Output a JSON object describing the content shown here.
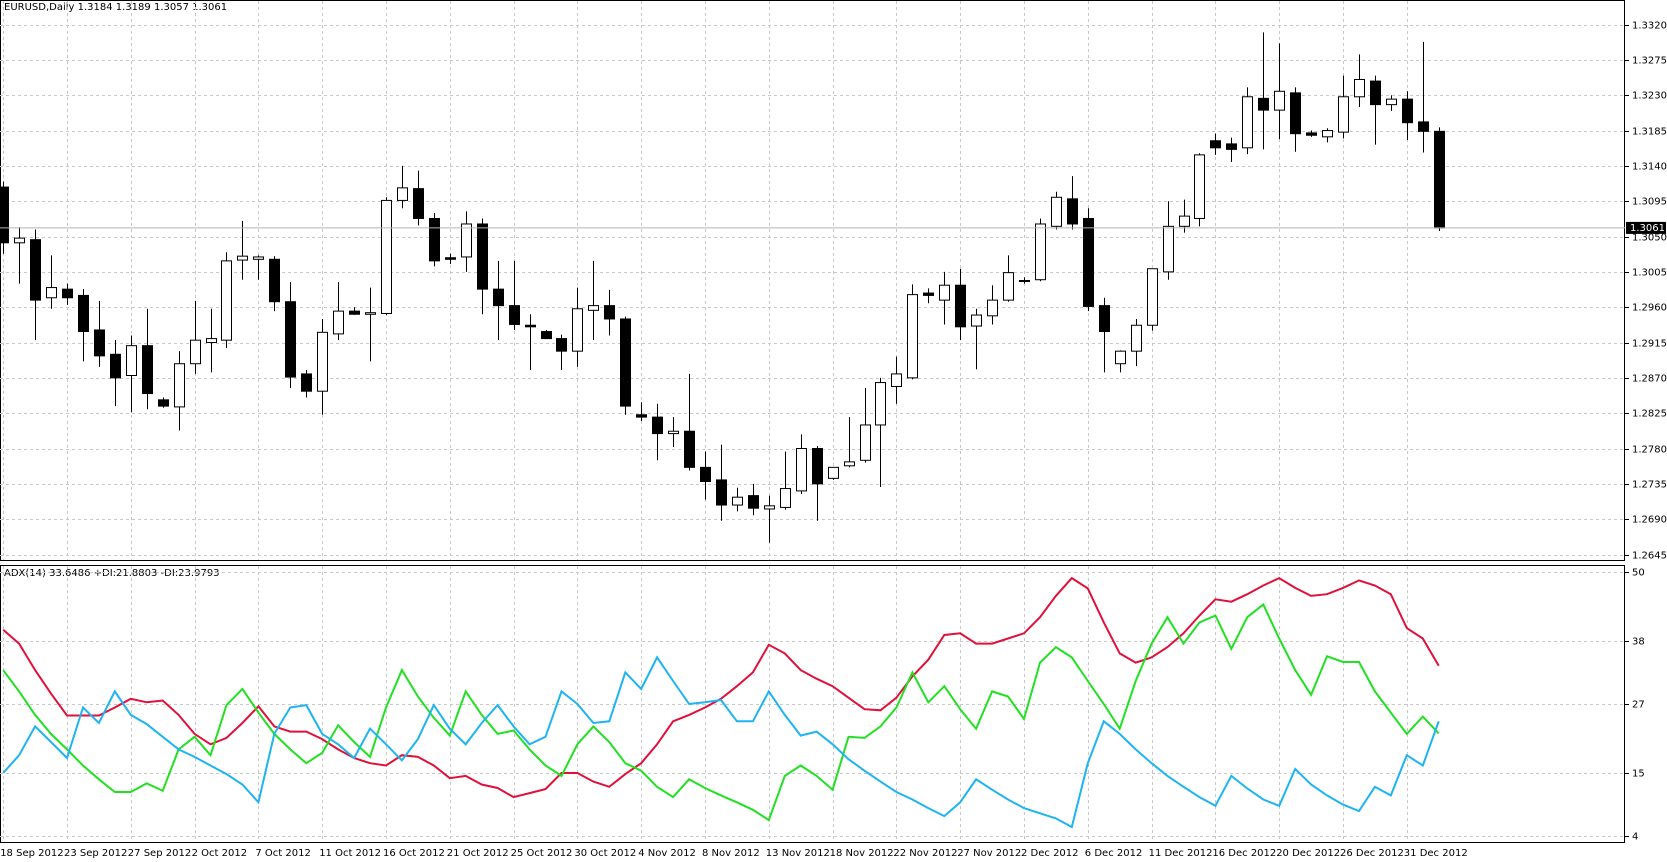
{
  "chart_data": [
    {
      "type": "candlestick",
      "title": "EURUSD,Daily  1.3184 1.3189 1.3057 1.3061",
      "categories": [
        "18 Sep 2012",
        null,
        null,
        null,
        "23 Sep 2012",
        null,
        null,
        null,
        "27 Sep 2012",
        null,
        null,
        null,
        "2 Oct 2012",
        null,
        null,
        null,
        "7 Oct 2012",
        null,
        null,
        null,
        "11 Oct 2012",
        null,
        null,
        null,
        "16 Oct 2012",
        null,
        null,
        null,
        "21 Oct 2012",
        null,
        null,
        null,
        "25 Oct 2012",
        null,
        null,
        null,
        "30 Oct 2012",
        null,
        null,
        null,
        "4 Nov 2012",
        null,
        null,
        null,
        "8 Nov 2012",
        null,
        null,
        null,
        "13 Nov 2012",
        null,
        null,
        null,
        "18 Nov 2012",
        null,
        null,
        null,
        "22 Nov 2012",
        null,
        null,
        null,
        "27 Nov 2012",
        null,
        null,
        null,
        "2 Dec 2012",
        null,
        null,
        null,
        "6 Dec 2012",
        null,
        null,
        null,
        "11 Dec 2012",
        null,
        null,
        null,
        "16 Dec 2012",
        null,
        null,
        null,
        "20 Dec 2012",
        null,
        null,
        null,
        "26 Dec 2012",
        null,
        null,
        null,
        "31 Dec 2012",
        null,
        null
      ],
      "open": [
        1.3113,
        1.3042,
        1.3046,
        1.2972,
        1.2983,
        1.2975,
        1.2931,
        1.29,
        1.2873,
        1.2911,
        1.2842,
        1.2833,
        1.2888,
        1.2915,
        1.2918,
        1.302,
        1.3021,
        1.3021,
        1.2967,
        1.2875,
        1.2853,
        1.2926,
        1.2955,
        1.2951,
        1.2952,
        1.3096,
        1.3111,
        1.3073,
        1.3023,
        1.3024,
        1.3066,
        1.2983,
        1.2962,
        1.2937,
        1.2929,
        1.292,
        1.2904,
        1.2956,
        1.2962,
        1.2945,
        1.2823,
        1.282,
        1.2799,
        1.2802,
        1.2756,
        1.274,
        1.2708,
        1.272,
        1.2703,
        1.2705,
        1.2726,
        1.278,
        1.2742,
        1.2758,
        1.2765,
        1.281,
        1.2859,
        1.287,
        1.2978,
        1.2969,
        1.2988,
        1.2936,
        1.2949,
        1.2969,
        1.2993,
        1.2995,
        1.3063,
        1.3098,
        1.3073,
        1.2962,
        1.2888,
        1.2904,
        1.2937,
        1.3005,
        1.3063,
        1.3073,
        1.3172,
        1.3168,
        1.3163,
        1.3226,
        1.3211,
        1.3233,
        1.3182,
        1.3177,
        1.3183,
        1.3228,
        1.3248,
        1.3218,
        1.3225,
        1.3196,
        1.3184
      ],
      "high": [
        1.312,
        1.3062,
        1.3059,
        1.3026,
        1.299,
        1.2983,
        1.2968,
        1.2918,
        1.2924,
        1.2958,
        1.2845,
        1.2904,
        1.2968,
        1.2958,
        1.303,
        1.307,
        1.3026,
        1.3025,
        1.2992,
        1.288,
        1.2945,
        1.2992,
        1.296,
        1.2985,
        1.31,
        1.314,
        1.3134,
        1.308,
        1.3028,
        1.3082,
        1.3073,
        1.3019,
        1.3019,
        1.2951,
        1.2931,
        1.2925,
        1.2985,
        1.3019,
        1.2982,
        1.2948,
        1.2839,
        1.2837,
        1.282,
        1.2875,
        1.2776,
        1.2785,
        1.273,
        1.2735,
        1.272,
        1.2776,
        1.2798,
        1.2783,
        1.2756,
        1.282,
        1.2857,
        1.287,
        1.2897,
        1.2989,
        1.2984,
        1.3005,
        1.3009,
        1.2958,
        1.2988,
        1.3026,
        1.2998,
        1.3073,
        1.3107,
        1.3127,
        1.3086,
        1.2972,
        1.2905,
        1.2945,
        1.3009,
        1.3095,
        1.3097,
        1.3156,
        1.3181,
        1.3176,
        1.324,
        1.331,
        1.3296,
        1.324,
        1.3185,
        1.3188,
        1.3255,
        1.3282,
        1.3255,
        1.323,
        1.3235,
        1.3298,
        1.3189
      ],
      "low": [
        1.3028,
        1.299,
        1.2918,
        1.2958,
        1.2963,
        1.2891,
        1.2884,
        1.2834,
        1.2826,
        1.283,
        1.2832,
        1.2803,
        1.2875,
        1.2877,
        1.2908,
        1.2995,
        1.2995,
        1.2955,
        1.2857,
        1.2845,
        1.2823,
        1.2918,
        1.295,
        1.2891,
        1.295,
        1.3086,
        1.3064,
        1.3012,
        1.3015,
        1.3005,
        1.2951,
        1.2918,
        1.2931,
        1.288,
        1.292,
        1.288,
        1.2884,
        1.2918,
        1.2924,
        1.2823,
        1.2815,
        1.2765,
        1.2782,
        1.2752,
        1.2715,
        1.2688,
        1.27,
        1.2695,
        1.266,
        1.2702,
        1.2722,
        1.2688,
        1.274,
        1.2756,
        1.2762,
        1.2731,
        1.2837,
        1.2868,
        1.2965,
        1.2938,
        1.2918,
        1.2881,
        1.2938,
        1.2967,
        1.299,
        1.2993,
        1.3059,
        1.3059,
        1.2955,
        1.2877,
        1.2877,
        1.2885,
        1.293,
        1.2995,
        1.3055,
        1.3063,
        1.3154,
        1.3145,
        1.3155,
        1.3161,
        1.3174,
        1.3158,
        1.3177,
        1.317,
        1.3175,
        1.3215,
        1.3167,
        1.321,
        1.3173,
        1.3157,
        1.3057
      ],
      "close": [
        1.3042,
        1.3048,
        1.2969,
        1.2985,
        1.2972,
        1.2929,
        1.2898,
        1.287,
        1.2911,
        1.285,
        1.2834,
        1.2888,
        1.2918,
        1.292,
        1.3019,
        1.3025,
        1.3024,
        1.2967,
        1.2871,
        1.2853,
        1.2928,
        1.2955,
        1.2951,
        1.2953,
        1.3096,
        1.3112,
        1.3073,
        1.3019,
        1.3021,
        1.3066,
        1.2983,
        1.2962,
        1.2938,
        1.2935,
        1.292,
        1.2904,
        1.2958,
        1.2962,
        1.2945,
        1.2834,
        1.282,
        1.2799,
        1.2802,
        1.2756,
        1.2738,
        1.2708,
        1.2718,
        1.2704,
        1.2707,
        1.2729,
        1.278,
        1.2735,
        1.2756,
        1.2763,
        1.281,
        1.2864,
        1.2875,
        1.2976,
        1.2975,
        1.2988,
        1.2935,
        1.295,
        1.2969,
        1.3004,
        1.2994,
        1.3066,
        1.31,
        1.3066,
        1.2961,
        1.2929,
        1.2904,
        1.2937,
        1.3009,
        1.3063,
        1.3076,
        1.3154,
        1.3163,
        1.3161,
        1.3228,
        1.3211,
        1.3235,
        1.3181,
        1.3179,
        1.3185,
        1.3228,
        1.325,
        1.3218,
        1.3225,
        1.3195,
        1.3184,
        1.3061
      ],
      "up_color": "#ffffff",
      "down_color": "#000000",
      "ylim": [
        1.2638,
        1.335
      ],
      "yticks": [
        {
          "value": 1.332,
          "label": "1.3320"
        },
        1.3275,
        {
          "value": 1.323,
          "label": "1.3230"
        },
        1.3185,
        {
          "value": 1.314,
          "label": "1.3140"
        },
        1.3095,
        {
          "value": 1.305,
          "label": "1.3050"
        },
        1.3005,
        {
          "value": 1.296,
          "label": "1.2960"
        },
        1.2915,
        {
          "value": 1.287,
          "label": "1.2870"
        },
        1.2825,
        {
          "value": 1.278,
          "label": "1.2780"
        },
        1.2735,
        {
          "value": 1.269,
          "label": "1.2690"
        },
        1.2645
      ],
      "grid": true
    },
    {
      "type": "line",
      "title": "ADX(14) 33.6486 +DI:21.8803 -DI:23.9793",
      "series": [
        {
          "color": "#e0103a",
          "values": [
            39.9,
            37.5,
            32.9,
            28.8,
            25,
            25,
            25,
            26.4,
            27.9,
            27.3,
            27.6,
            25.1,
            21.8,
            20,
            21.1,
            23.7,
            26.6,
            23.1,
            22.2,
            22.2,
            20.9,
            19.1,
            17.6,
            16.7,
            16.3,
            18.1,
            17.8,
            16.3,
            14.1,
            14.5,
            13,
            12.4,
            10.8,
            11.5,
            12.2,
            15,
            15,
            13.5,
            12.6,
            14.8,
            16.7,
            20,
            24,
            25.1,
            26.4,
            27.9,
            30.1,
            32.5,
            37.3,
            35.8,
            32.9,
            31.4,
            30.1,
            28.1,
            26.1,
            25.9,
            28.1,
            31.8,
            34.7,
            39,
            39.3,
            37.5,
            37.5,
            38.4,
            39.3,
            42.1,
            45.8,
            48.9,
            47.1,
            41.2,
            35.8,
            34.2,
            35.1,
            36.9,
            39.3,
            42.4,
            45.2,
            44.8,
            46.1,
            47.6,
            48.9,
            47.2,
            45.8,
            46.1,
            47.2,
            48.5,
            47.6,
            46.1,
            40.2,
            38.4,
            33.65
          ]
        },
        {
          "color": "#22e022",
          "values": [
            32.9,
            29.2,
            25.1,
            21.8,
            19.1,
            16.3,
            13.9,
            11.7,
            11.7,
            13.2,
            11.9,
            19.1,
            21.3,
            18.1,
            26.8,
            29.6,
            25.5,
            21.8,
            19.1,
            16.7,
            18.5,
            23.3,
            20.4,
            17.8,
            26.4,
            32.9,
            28.3,
            24.6,
            21.5,
            29.2,
            25.1,
            21.8,
            22.4,
            19.1,
            16.3,
            14.5,
            20,
            23.1,
            20.4,
            16.7,
            15.4,
            12.6,
            10.8,
            13.9,
            12.4,
            11.1,
            9.9,
            8.6,
            6.8,
            14.5,
            16.3,
            14.5,
            12.1,
            21.3,
            21.1,
            23.1,
            26.4,
            32.5,
            27.3,
            30.1,
            26.1,
            22.7,
            29.2,
            28.3,
            24.4,
            34.2,
            36.9,
            35.1,
            31,
            27,
            22.7,
            31,
            37.5,
            42.1,
            37.5,
            41.2,
            42.4,
            36.6,
            42.1,
            44.3,
            38.4,
            32.9,
            28.6,
            35.3,
            34.3,
            34.3,
            29.2,
            25.5,
            21.8,
            24.8,
            21.88
          ]
        },
        {
          "color": "#1eb4f0",
          "values": [
            15,
            18.1,
            23.1,
            20.4,
            17.6,
            26.4,
            23.7,
            29.2,
            25.1,
            23.5,
            21.3,
            19.1,
            17.8,
            16.3,
            14.8,
            13,
            9.9,
            21.8,
            26.4,
            26.8,
            21.8,
            20,
            17.6,
            22.7,
            20,
            17.2,
            20.9,
            26.8,
            22.7,
            20,
            23.7,
            26.8,
            23.1,
            20,
            21.3,
            29.2,
            27,
            23.7,
            24,
            32.5,
            29.6,
            35.1,
            31,
            27,
            27.3,
            27.7,
            24,
            24,
            29.2,
            25.1,
            21.5,
            22.2,
            20,
            17.4,
            15.4,
            13.5,
            11.7,
            10.4,
            8.9,
            7.5,
            9.9,
            13.9,
            12.1,
            10.4,
            8.9,
            8,
            7.1,
            5.6,
            16.7,
            24,
            21.8,
            19.1,
            16.7,
            14.5,
            12.6,
            10.8,
            9.3,
            14.5,
            12.3,
            10.4,
            9.3,
            15.7,
            13,
            11.1,
            9.5,
            8.4,
            12.6,
            11.1,
            18.1,
            16.3,
            23.98
          ]
        }
      ],
      "ylim": [
        3,
        51
      ],
      "yticks": [
        4,
        15,
        27,
        38,
        50
      ],
      "grid": true
    }
  ]
}
